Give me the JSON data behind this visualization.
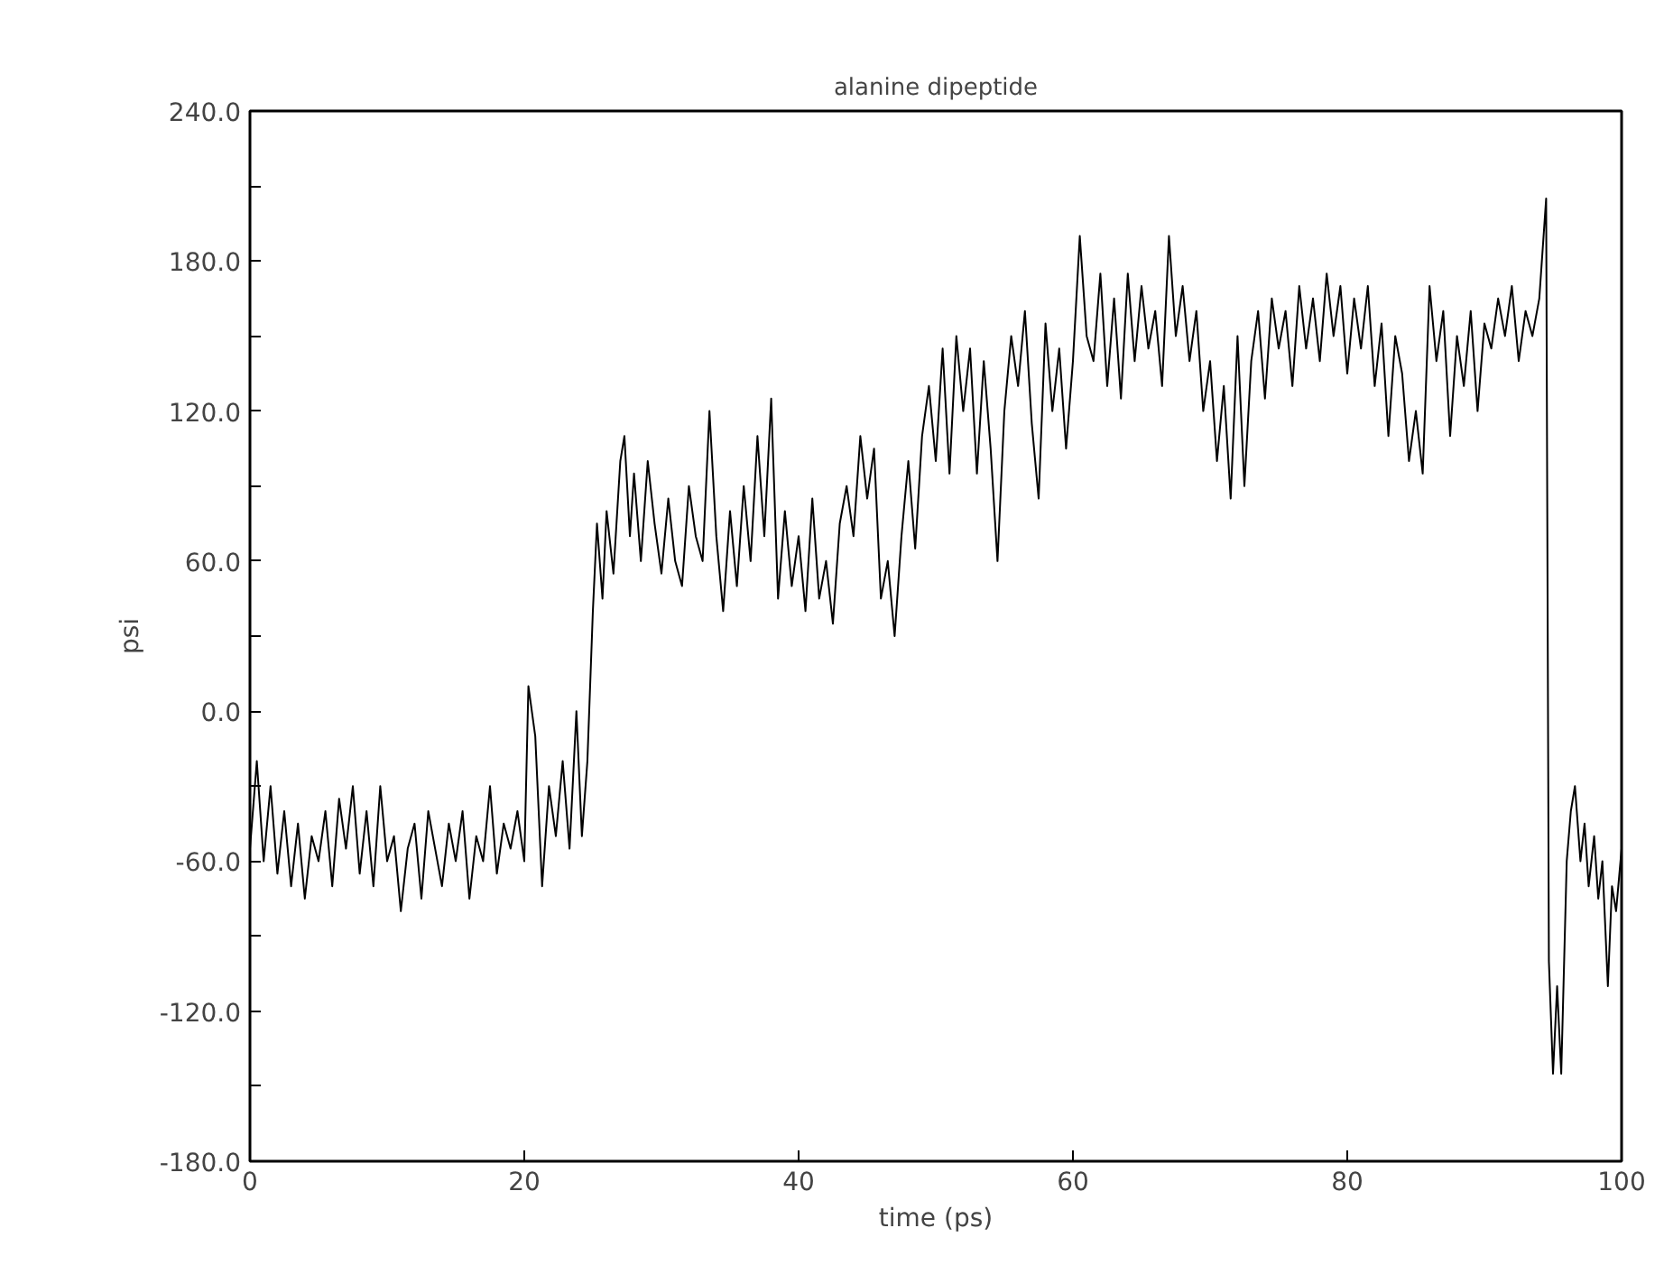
{
  "chart_data": {
    "type": "line",
    "title": "alanine dipeptide",
    "xlabel": "time (ps)",
    "ylabel": "psi",
    "xlim": [
      0,
      100
    ],
    "xticks": [
      0,
      20,
      40,
      60,
      80,
      100
    ],
    "ylim": [
      -180,
      240
    ],
    "yticks": [
      {
        "value": -180,
        "label": "-180.0"
      },
      {
        "value": -150,
        "label": null
      },
      {
        "value": -120,
        "label": "-120.0"
      },
      {
        "value": -90,
        "label": null
      },
      {
        "value": -60,
        "label": "-60.0"
      },
      {
        "value": -30,
        "label": null
      },
      {
        "value": 0,
        "label": "0.0"
      },
      {
        "value": 30,
        "label": null
      },
      {
        "value": 60,
        "label": "60.0"
      },
      {
        "value": 90,
        "label": null
      },
      {
        "value": 120,
        "label": "120.0"
      },
      {
        "value": 150,
        "label": null
      },
      {
        "value": 180,
        "label": "180.0"
      },
      {
        "value": 210,
        "label": null
      },
      {
        "value": 240,
        "label": "240.0"
      }
    ],
    "marker": "none",
    "line_style": "solid",
    "series": [
      {
        "color": "#000000",
        "x": [
          0,
          0.5,
          1,
          1.5,
          2,
          2.5,
          3,
          3.5,
          4,
          4.5,
          5,
          5.5,
          6,
          6.5,
          7,
          7.5,
          8,
          8.5,
          9,
          9.5,
          10,
          10.5,
          11,
          11.5,
          12,
          12.5,
          13,
          13.5,
          14,
          14.5,
          15,
          15.5,
          16,
          16.5,
          17,
          17.5,
          18,
          18.5,
          19,
          19.5,
          20,
          20.3,
          20.8,
          21.3,
          21.8,
          22.3,
          22.8,
          23.3,
          23.8,
          24.2,
          24.6,
          25,
          25.3,
          25.7,
          26,
          26.5,
          27,
          27.3,
          27.7,
          28,
          28.5,
          29,
          29.5,
          30,
          30.5,
          31,
          31.5,
          32,
          32.5,
          33,
          33.5,
          34,
          34.5,
          35,
          35.5,
          36,
          36.5,
          37,
          37.5,
          38,
          38.5,
          39,
          39.5,
          40,
          40.5,
          41,
          41.5,
          42,
          42.5,
          43,
          43.5,
          44,
          44.5,
          45,
          45.5,
          46,
          46.5,
          47,
          47.5,
          48,
          48.5,
          49,
          49.5,
          50,
          50.5,
          51,
          51.5,
          52,
          52.5,
          53,
          53.5,
          54,
          54.5,
          55,
          55.5,
          56,
          56.5,
          57,
          57.5,
          58,
          58.5,
          59,
          59.5,
          60,
          60.5,
          61,
          61.5,
          62,
          62.5,
          63,
          63.5,
          64,
          64.5,
          65,
          65.5,
          66,
          66.5,
          67,
          67.5,
          68,
          68.5,
          69,
          69.5,
          70,
          70.5,
          71,
          71.5,
          72,
          72.5,
          73,
          73.5,
          74,
          74.5,
          75,
          75.5,
          76,
          76.5,
          77,
          77.5,
          78,
          78.5,
          79,
          79.5,
          80,
          80.5,
          81,
          81.5,
          82,
          82.5,
          83,
          83.5,
          84,
          84.5,
          85,
          85.5,
          86,
          86.5,
          87,
          87.5,
          88,
          88.5,
          89,
          89.5,
          90,
          90.5,
          91,
          91.5,
          92,
          92.5,
          93,
          93.5,
          94,
          94.5,
          94.7,
          95,
          95.3,
          95.6,
          96,
          96.3,
          96.6,
          97,
          97.3,
          97.6,
          98,
          98.3,
          98.6,
          99,
          99.3,
          99.6,
          100
        ],
        "values": [
          -55,
          -20,
          -60,
          -30,
          -65,
          -40,
          -70,
          -45,
          -75,
          -50,
          -60,
          -40,
          -70,
          -35,
          -55,
          -30,
          -65,
          -40,
          -70,
          -30,
          -60,
          -50,
          -80,
          -55,
          -45,
          -75,
          -40,
          -55,
          -70,
          -45,
          -60,
          -40,
          -75,
          -50,
          -60,
          -30,
          -65,
          -45,
          -55,
          -40,
          -60,
          10,
          -10,
          -70,
          -30,
          -50,
          -20,
          -55,
          0,
          -50,
          -20,
          40,
          75,
          45,
          80,
          55,
          100,
          110,
          70,
          95,
          60,
          100,
          75,
          55,
          85,
          60,
          50,
          90,
          70,
          60,
          120,
          70,
          40,
          80,
          50,
          90,
          60,
          110,
          70,
          125,
          45,
          80,
          50,
          70,
          40,
          85,
          45,
          60,
          35,
          75,
          90,
          70,
          110,
          85,
          105,
          45,
          60,
          30,
          70,
          100,
          65,
          110,
          130,
          100,
          145,
          95,
          150,
          120,
          145,
          95,
          140,
          105,
          60,
          120,
          150,
          130,
          160,
          115,
          85,
          155,
          120,
          145,
          105,
          140,
          190,
          150,
          140,
          175,
          130,
          165,
          125,
          175,
          140,
          170,
          145,
          160,
          130,
          190,
          150,
          170,
          140,
          160,
          120,
          140,
          100,
          130,
          85,
          150,
          90,
          140,
          160,
          125,
          165,
          145,
          160,
          130,
          170,
          145,
          165,
          140,
          175,
          150,
          170,
          135,
          165,
          145,
          170,
          130,
          155,
          110,
          150,
          135,
          100,
          120,
          95,
          170,
          140,
          160,
          110,
          150,
          130,
          160,
          120,
          155,
          145,
          165,
          150,
          170,
          140,
          160,
          150,
          165,
          205,
          -100,
          -145,
          -110,
          -145,
          -60,
          -40,
          -30,
          -60,
          -45,
          -70,
          -50,
          -75,
          -60,
          -110,
          -70,
          -80,
          -55
        ]
      }
    ]
  }
}
